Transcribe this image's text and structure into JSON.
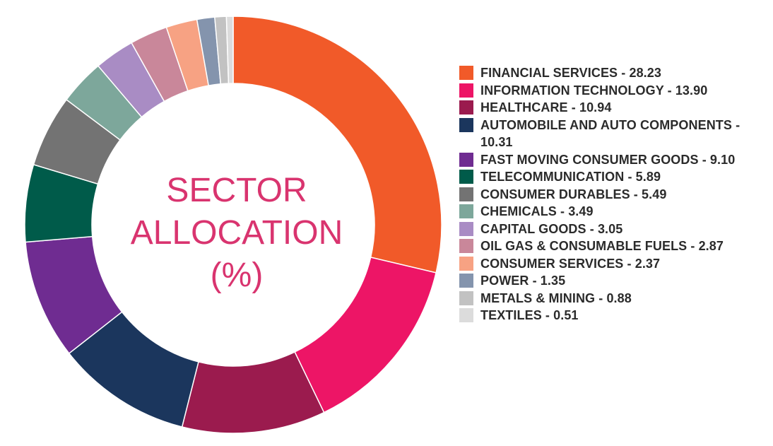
{
  "chart_data": {
    "type": "pie",
    "title": "SECTOR ALLOCATION (%)",
    "title_lines": [
      "SECTOR",
      "ALLOCATION",
      "(%)"
    ],
    "donut": true,
    "legend_position": "right",
    "slices": [
      {
        "label": "FINANCIAL SERVICES - 28.23",
        "value": 28.23,
        "color": "#f15a29"
      },
      {
        "label": "INFORMATION TECHNOLOGY - 13.90",
        "value": 13.9,
        "color": "#ed1566"
      },
      {
        "label": "HEALTHCARE - 10.94",
        "value": 10.94,
        "color": "#9b1b4e"
      },
      {
        "label": "AUTOMOBILE AND AUTO COMPONENTS - 10.31",
        "value": 10.31,
        "color": "#1b365d"
      },
      {
        "label": "FAST MOVING CONSUMER GOODS - 9.10",
        "value": 9.1,
        "color": "#6f2c91"
      },
      {
        "label": "TELECOMMUNICATION - 5.89",
        "value": 5.89,
        "color": "#005b4a"
      },
      {
        "label": "CONSUMER DURABLES - 5.49",
        "value": 5.49,
        "color": "#737373"
      },
      {
        "label": "CHEMICALS - 3.49",
        "value": 3.49,
        "color": "#7da79b"
      },
      {
        "label": "CAPITAL GOODS - 3.05",
        "value": 3.05,
        "color": "#a98cc4"
      },
      {
        "label": "OIL GAS & CONSUMABLE FUELS - 2.87",
        "value": 2.87,
        "color": "#c9879a"
      },
      {
        "label": "CONSUMER SERVICES - 2.37",
        "value": 2.37,
        "color": "#f7a283"
      },
      {
        "label": "POWER - 1.35",
        "value": 1.35,
        "color": "#8494ad"
      },
      {
        "label": "METALS & MINING - 0.88",
        "value": 0.88,
        "color": "#c2c2c2"
      },
      {
        "label": "TEXTILES - 0.51",
        "value": 0.51,
        "color": "#dcdcdc"
      }
    ]
  }
}
